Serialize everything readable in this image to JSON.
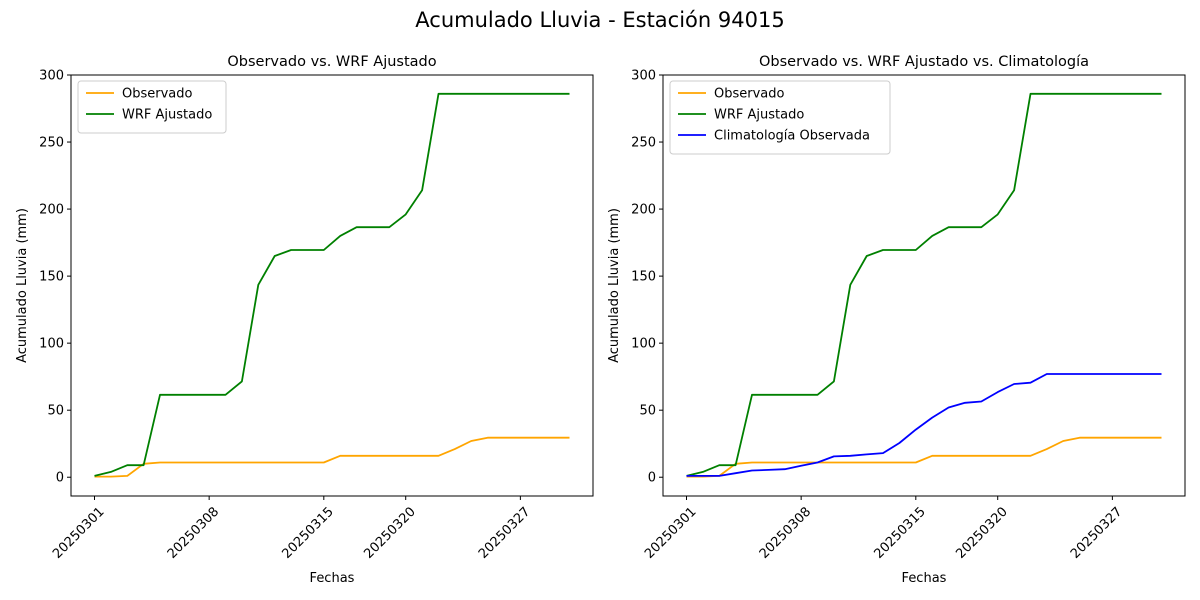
{
  "figure": {
    "title": "Acumulado Lluvia - Estación 94015"
  },
  "colors": {
    "observado": "#ffa500",
    "wrf": "#008000",
    "clima": "#0000ff"
  },
  "chart_data": [
    {
      "type": "line",
      "title": "Observado vs. WRF Ajustado",
      "xlabel": "Fechas",
      "ylabel": "Acumulado Lluvia (mm)",
      "x": [
        "20250301",
        "20250302",
        "20250303",
        "20250304",
        "20250305",
        "20250306",
        "20250307",
        "20250308",
        "20250309",
        "20250310",
        "20250311",
        "20250312",
        "20250313",
        "20250314",
        "20250315",
        "20250316",
        "20250317",
        "20250318",
        "20250319",
        "20250320",
        "20250321",
        "20250322",
        "20250323",
        "20250324",
        "20250325",
        "20250326",
        "20250327",
        "20250328",
        "20250329",
        "20250330"
      ],
      "xticks": [
        "20250301",
        "20250308",
        "20250315",
        "20250320",
        "20250327"
      ],
      "yticks": [
        0,
        50,
        100,
        150,
        200,
        250,
        300
      ],
      "ylim": [
        -14,
        300
      ],
      "legend": "upper-left",
      "series": [
        {
          "name": "Observado",
          "color": "#ffa500",
          "values": [
            0.5,
            0.5,
            1,
            10,
            11,
            11,
            11,
            11,
            11,
            11,
            11,
            11,
            11,
            11,
            11,
            16,
            16,
            16,
            16,
            16,
            16,
            16,
            21,
            27,
            29.5,
            29.5,
            29.5,
            29.5,
            29.5,
            29.5
          ]
        },
        {
          "name": "WRF Ajustado",
          "color": "#008000",
          "values": [
            1,
            4,
            9,
            9,
            61.5,
            61.5,
            61.5,
            61.5,
            61.5,
            71.5,
            143.5,
            165,
            169.5,
            169.5,
            169.5,
            180,
            186.5,
            186.5,
            186.5,
            196,
            214,
            286,
            286,
            286,
            286,
            286,
            286,
            286,
            286,
            286
          ]
        }
      ]
    },
    {
      "type": "line",
      "title": "Observado vs. WRF Ajustado vs. Climatología",
      "xlabel": "Fechas",
      "ylabel": "Acumulado Lluvia (mm)",
      "x": [
        "20250301",
        "20250302",
        "20250303",
        "20250304",
        "20250305",
        "20250306",
        "20250307",
        "20250308",
        "20250309",
        "20250310",
        "20250311",
        "20250312",
        "20250313",
        "20250314",
        "20250315",
        "20250316",
        "20250317",
        "20250318",
        "20250319",
        "20250320",
        "20250321",
        "20250322",
        "20250323",
        "20250324",
        "20250325",
        "20250326",
        "20250327",
        "20250328",
        "20250329",
        "20250330"
      ],
      "xticks": [
        "20250301",
        "20250308",
        "20250315",
        "20250320",
        "20250327"
      ],
      "yticks": [
        0,
        50,
        100,
        150,
        200,
        250,
        300
      ],
      "ylim": [
        -14,
        300
      ],
      "legend": "upper-left",
      "series": [
        {
          "name": "Observado",
          "color": "#ffa500",
          "values": [
            0.5,
            0.5,
            1,
            10,
            11,
            11,
            11,
            11,
            11,
            11,
            11,
            11,
            11,
            11,
            11,
            16,
            16,
            16,
            16,
            16,
            16,
            16,
            21,
            27,
            29.5,
            29.5,
            29.5,
            29.5,
            29.5,
            29.5
          ]
        },
        {
          "name": "WRF Ajustado",
          "color": "#008000",
          "values": [
            1,
            4,
            9,
            9,
            61.5,
            61.5,
            61.5,
            61.5,
            61.5,
            71.5,
            143.5,
            165,
            169.5,
            169.5,
            169.5,
            180,
            186.5,
            186.5,
            186.5,
            196,
            214,
            286,
            286,
            286,
            286,
            286,
            286,
            286,
            286,
            286
          ]
        },
        {
          "name": "Climatología Observada",
          "color": "#0000ff",
          "values": [
            1,
            1,
            1,
            3,
            5,
            5.5,
            6,
            8.5,
            11,
            15.5,
            16,
            17,
            18,
            25.5,
            35.5,
            44.5,
            52,
            55.5,
            56.5,
            63.5,
            69.5,
            70.5,
            77,
            77,
            77,
            77,
            77,
            77,
            77,
            77
          ]
        }
      ]
    }
  ]
}
